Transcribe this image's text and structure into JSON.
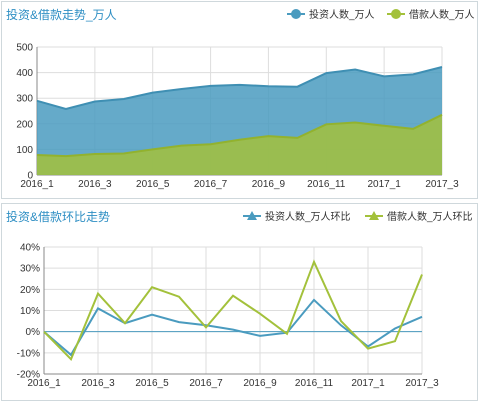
{
  "panels": [
    {
      "title": "投资&借款走势_万人"
    },
    {
      "title": "投资&借款环比走势"
    }
  ],
  "colors": {
    "invest": "#4a9bbf",
    "borrow": "#a3c13b",
    "title": "#2f8fc4",
    "grid": "#dddddd"
  },
  "chart_data": [
    {
      "type": "area",
      "title": "投资&借款走势_万人",
      "x": [
        "2016_1",
        "2016_2",
        "2016_3",
        "2016_4",
        "2016_5",
        "2016_6",
        "2016_7",
        "2016_8",
        "2016_9",
        "2016_10",
        "2016_11",
        "2016_12",
        "2017_1",
        "2017_2",
        "2017_3"
      ],
      "x_tick_labels": [
        "2016_1",
        "2016_3",
        "2016_5",
        "2016_7",
        "2016_9",
        "2016_11",
        "2017_1",
        "2017_3"
      ],
      "series": [
        {
          "name": "投资人数_万人",
          "values": [
            290,
            258,
            287,
            297,
            322,
            336,
            348,
            352,
            347,
            345,
            398,
            412,
            385,
            393,
            422
          ]
        },
        {
          "name": "借款人数_万人",
          "values": [
            78,
            74,
            82,
            84,
            100,
            115,
            120,
            138,
            152,
            145,
            198,
            205,
            192,
            180,
            235
          ]
        }
      ],
      "ylim": [
        0,
        500
      ],
      "y_ticks": [
        0,
        100,
        200,
        300,
        400,
        500
      ],
      "grid": true,
      "legend": "top-right"
    },
    {
      "type": "line",
      "title": "投资&借款环比走势",
      "x": [
        "2016_1",
        "2016_2",
        "2016_3",
        "2016_4",
        "2016_5",
        "2016_6",
        "2016_7",
        "2016_8",
        "2016_9",
        "2016_10",
        "2016_11",
        "2016_12",
        "2017_1",
        "2017_2",
        "2017_3"
      ],
      "x_tick_labels": [
        "2016_1",
        "2016_3",
        "2016_5",
        "2016_7",
        "2016_9",
        "2016_11",
        "2017_1",
        "2017_3"
      ],
      "series": [
        {
          "name": "投资人数_万人环比",
          "values": [
            0,
            -11,
            11,
            4,
            8,
            4.5,
            3,
            1,
            -2,
            -0.5,
            15,
            3,
            -7,
            1.5,
            7
          ]
        },
        {
          "name": "借款人数_万人环比",
          "values": [
            0,
            -13,
            18,
            4,
            21,
            16.5,
            2,
            17,
            8.5,
            -1,
            33,
            5,
            -8,
            -4.5,
            27
          ]
        }
      ],
      "ylim": [
        -20,
        40
      ],
      "y_ticks": [
        -20,
        -10,
        0,
        10,
        20,
        30,
        40
      ],
      "y_tick_labels": [
        "-20%",
        "-10%",
        "0%",
        "10%",
        "20%",
        "30%",
        "40%"
      ],
      "grid": true,
      "legend": "top-right"
    }
  ]
}
